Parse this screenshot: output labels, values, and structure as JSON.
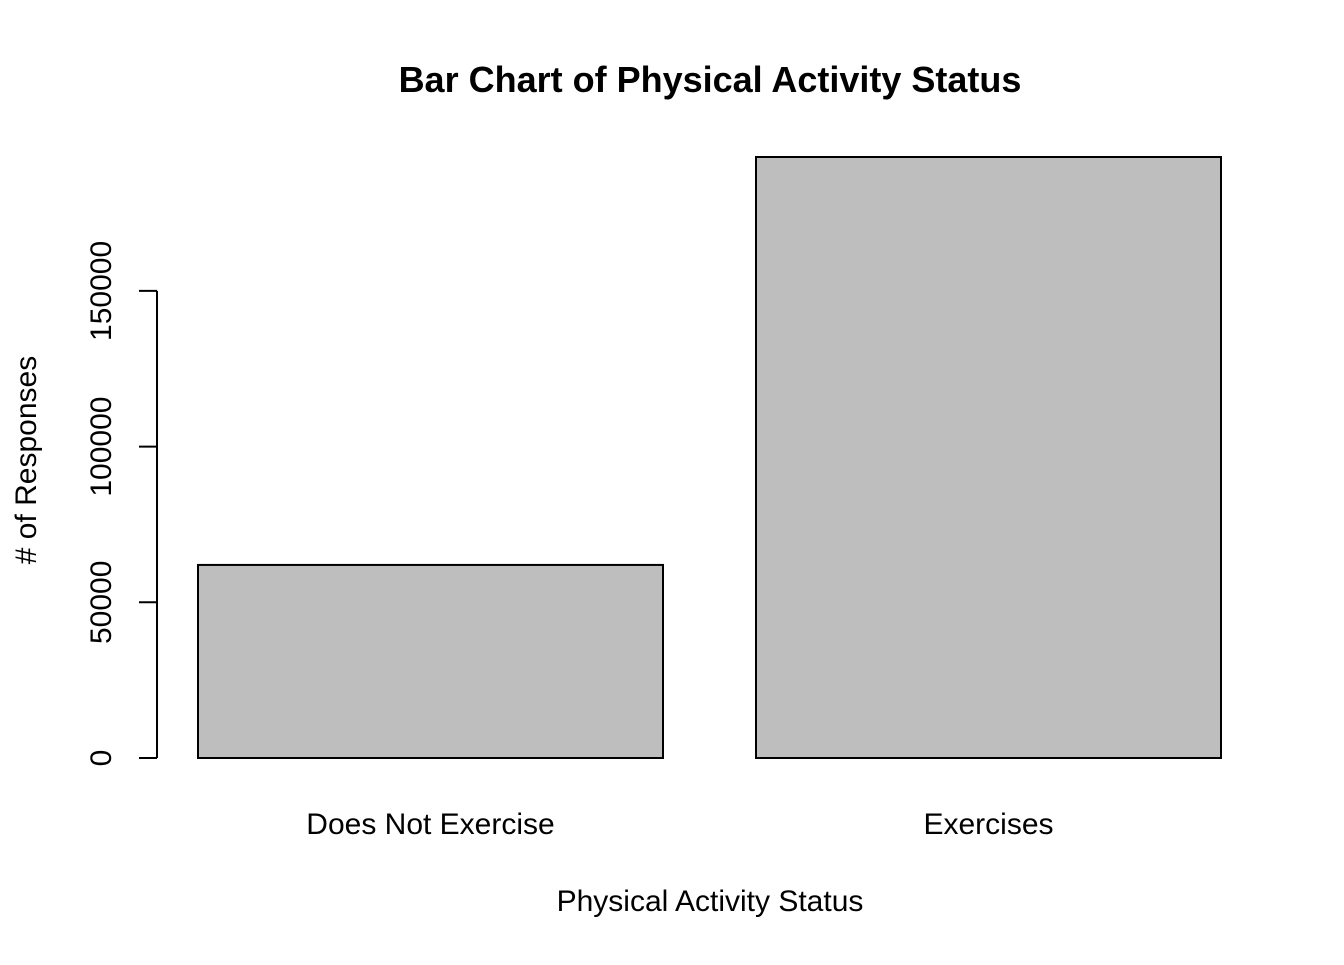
{
  "chart_data": {
    "type": "bar",
    "title": "Bar Chart of Physical Activity Status",
    "xlabel": "Physical Activity Status",
    "ylabel": "# of Responses",
    "categories": [
      "Does Not Exercise",
      "Exercises"
    ],
    "values": [
      62000,
      193000
    ],
    "ylim": [
      0,
      193000
    ],
    "yticks": [
      0,
      50000,
      100000,
      150000
    ],
    "ytick_labels": [
      "0",
      "50000",
      "100000",
      "150000"
    ],
    "bar_color": "#bebebe",
    "bar_edge_color": "#000000",
    "grid": false,
    "legend": "none"
  }
}
